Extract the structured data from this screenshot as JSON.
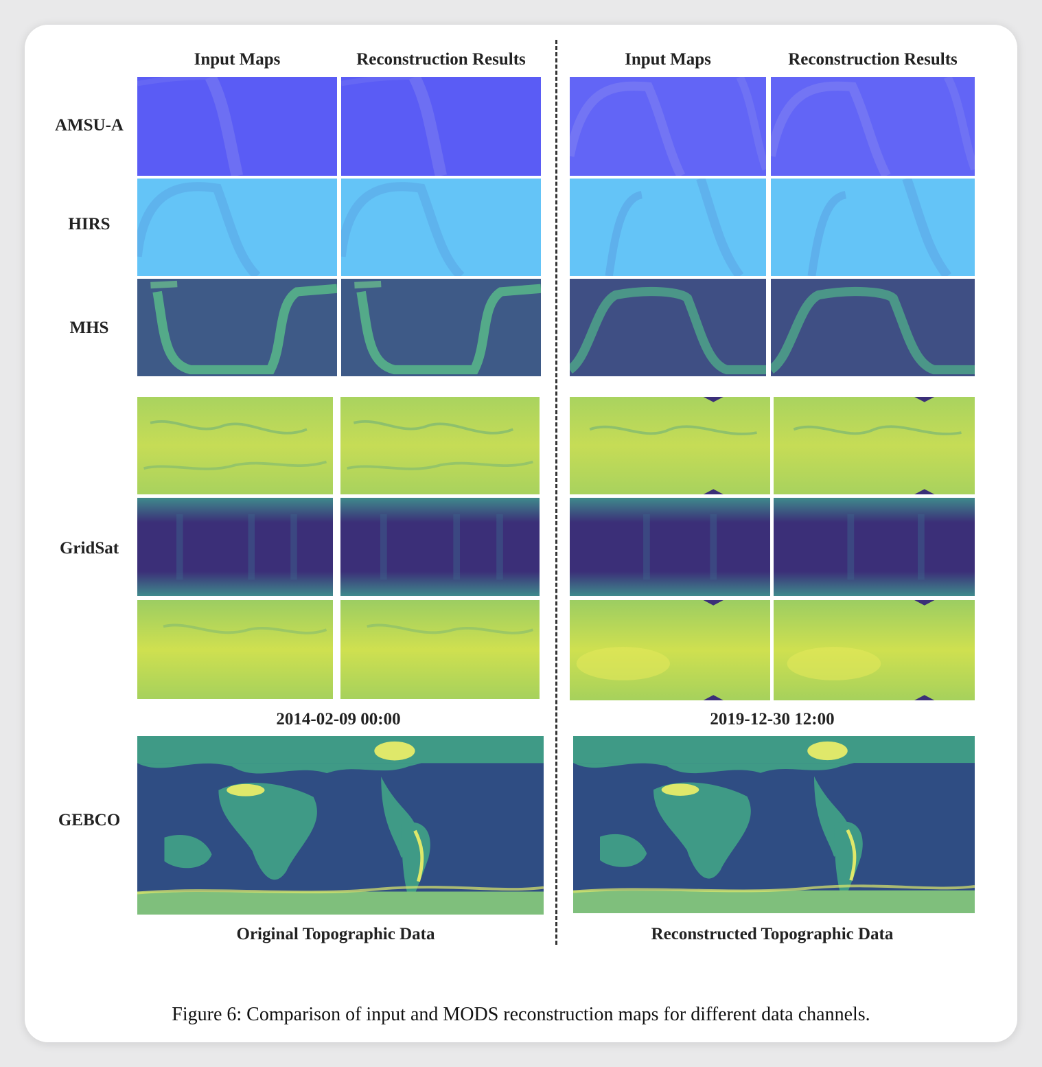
{
  "figure": {
    "left_group": {
      "column_headers": [
        "Input Maps",
        "Reconstruction Results"
      ],
      "date": "2014-02-09 00:00",
      "gebco_caption": "Original Topographic Data"
    },
    "right_group": {
      "column_headers": [
        "Input Maps",
        "Reconstruction Results"
      ],
      "date": "2019-12-30 12:00",
      "gebco_caption": "Reconstructed Topographic Data"
    },
    "row_labels": {
      "amsu": "AMSU-A",
      "hirs": "HIRS",
      "mhs": "MHS",
      "gridsat": "GridSat",
      "gebco": "GEBCO"
    },
    "colors": {
      "amsu": "#5a5cf5",
      "hirs": "#64c4f7",
      "mhs": "#3e5a87",
      "mhs_swath": "#58b98a",
      "gridsat_bright": "#bcd95a",
      "gridsat_dark": "#3b2f78",
      "gebco_ocean": "#2f4d83",
      "gebco_land": "#3f9a86",
      "gebco_high": "#dfe86a"
    },
    "caption": "Figure 6: Comparison of input and MODS reconstruction maps for different data channels."
  }
}
